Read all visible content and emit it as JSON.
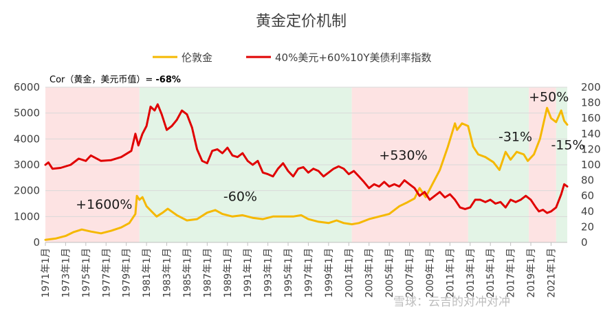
{
  "title": "黄金定价机制",
  "legend": [
    {
      "label": "伦敦金",
      "color": "#F5B800"
    },
    {
      "label": "40%美元+60%10Y美债利率指数",
      "color": "#E00000"
    }
  ],
  "cor_label": "Cor（黄金，美元币值）= ",
  "cor_value": "-68%",
  "watermark": "雪球：云吉的对冲对冲",
  "chart_data": {
    "type": "line",
    "title": "黄金定价机制",
    "x_range": [
      1971.0,
      2022.6
    ],
    "y_left_range": [
      0,
      6000
    ],
    "y_left_ticks": [
      0,
      1000,
      2000,
      3000,
      4000,
      5000,
      6000
    ],
    "y_right_range": [
      0,
      200
    ],
    "y_right_ticks": [
      0,
      20,
      40,
      60,
      80,
      100,
      120,
      140,
      160,
      180,
      200
    ],
    "x_tick_labels": [
      "1971年1月",
      "1973年1月",
      "1975年1月",
      "1977年1月",
      "1979年1月",
      "1981年1月",
      "1983年1月",
      "1985年1月",
      "1987年1月",
      "1989年1月",
      "1991年1月",
      "1993年1月",
      "1995年1月",
      "1997年1月",
      "1999年1月",
      "2001年1月",
      "2003年1月",
      "2005年1月",
      "2007年1月",
      "2009年1月",
      "2011年1月",
      "2013年1月",
      "2015年1月",
      "2017年1月",
      "2019年1月",
      "2021年1月"
    ],
    "regimes": [
      {
        "start": 1971.0,
        "end": 1980.3,
        "kind": "pink",
        "color": "#FDE3E3",
        "label": "+1600%",
        "label_x": 1974.0,
        "label_y": 1300
      },
      {
        "start": 1980.3,
        "end": 2001.3,
        "kind": "green",
        "color": "#E3F4E6",
        "label": "-60%",
        "label_x": 1988.6,
        "label_y": 1600
      },
      {
        "start": 2001.3,
        "end": 2012.8,
        "kind": "pink",
        "color": "#FDE3E3",
        "label": "+530%",
        "label_x": 2004.0,
        "label_y": 3200
      },
      {
        "start": 2012.8,
        "end": 2018.8,
        "kind": "green",
        "color": "#E3F4E6",
        "label": "-31%",
        "label_x": 2015.8,
        "label_y": 3920
      },
      {
        "start": 2018.8,
        "end": 2021.5,
        "kind": "pink",
        "color": "#FDE3E3",
        "label": "+50%",
        "label_x": 2018.8,
        "label_y": 5450
      },
      {
        "start": 2021.5,
        "end": 2022.6,
        "kind": "green",
        "color": "#E3F4E6",
        "label": "-15%",
        "label_x": 2021.0,
        "label_y": 3600
      }
    ],
    "series": [
      {
        "name": "伦敦金",
        "axis": "left",
        "color": "#F5B800",
        "points": [
          [
            1971.0,
            100
          ],
          [
            1972.0,
            150
          ],
          [
            1973.0,
            250
          ],
          [
            1973.8,
            400
          ],
          [
            1974.6,
            500
          ],
          [
            1975.5,
            420
          ],
          [
            1976.5,
            350
          ],
          [
            1977.5,
            450
          ],
          [
            1978.5,
            580
          ],
          [
            1979.3,
            750
          ],
          [
            1979.9,
            1100
          ],
          [
            1980.05,
            1800
          ],
          [
            1980.3,
            1650
          ],
          [
            1980.6,
            1750
          ],
          [
            1981.0,
            1400
          ],
          [
            1981.5,
            1200
          ],
          [
            1982.0,
            1000
          ],
          [
            1982.6,
            1150
          ],
          [
            1983.1,
            1300
          ],
          [
            1984.0,
            1050
          ],
          [
            1985.0,
            850
          ],
          [
            1986.0,
            900
          ],
          [
            1987.0,
            1150
          ],
          [
            1987.8,
            1250
          ],
          [
            1988.5,
            1100
          ],
          [
            1989.5,
            1000
          ],
          [
            1990.5,
            1050
          ],
          [
            1991.5,
            950
          ],
          [
            1992.5,
            900
          ],
          [
            1993.5,
            1000
          ],
          [
            1994.5,
            1000
          ],
          [
            1995.5,
            1000
          ],
          [
            1996.3,
            1050
          ],
          [
            1997.0,
            900
          ],
          [
            1998.0,
            800
          ],
          [
            1999.0,
            750
          ],
          [
            1999.8,
            850
          ],
          [
            2000.5,
            750
          ],
          [
            2001.3,
            700
          ],
          [
            2002.0,
            750
          ],
          [
            2003.0,
            900
          ],
          [
            2004.0,
            1000
          ],
          [
            2005.0,
            1100
          ],
          [
            2006.0,
            1400
          ],
          [
            2006.8,
            1550
          ],
          [
            2007.5,
            1700
          ],
          [
            2008.0,
            2100
          ],
          [
            2008.6,
            1750
          ],
          [
            2009.2,
            2200
          ],
          [
            2010.0,
            2800
          ],
          [
            2010.8,
            3700
          ],
          [
            2011.5,
            4600
          ],
          [
            2011.7,
            4350
          ],
          [
            2012.2,
            4600
          ],
          [
            2012.8,
            4500
          ],
          [
            2013.3,
            3700
          ],
          [
            2013.8,
            3400
          ],
          [
            2014.5,
            3300
          ],
          [
            2015.3,
            3100
          ],
          [
            2015.9,
            2800
          ],
          [
            2016.5,
            3500
          ],
          [
            2017.0,
            3200
          ],
          [
            2017.6,
            3500
          ],
          [
            2018.3,
            3400
          ],
          [
            2018.7,
            3150
          ],
          [
            2019.3,
            3400
          ],
          [
            2019.9,
            4000
          ],
          [
            2020.6,
            5200
          ],
          [
            2021.0,
            4800
          ],
          [
            2021.5,
            4650
          ],
          [
            2022.0,
            5100
          ],
          [
            2022.3,
            4700
          ],
          [
            2022.6,
            4550
          ]
        ]
      },
      {
        "name": "40%美元+60%10Y美债利率指数",
        "axis": "right",
        "color": "#E00000",
        "points": [
          [
            1971.0,
            100
          ],
          [
            1971.3,
            103
          ],
          [
            1971.7,
            95
          ],
          [
            1972.5,
            96
          ],
          [
            1973.5,
            100
          ],
          [
            1974.3,
            108
          ],
          [
            1975.0,
            105
          ],
          [
            1975.5,
            112
          ],
          [
            1976.5,
            105
          ],
          [
            1977.5,
            106
          ],
          [
            1978.5,
            110
          ],
          [
            1979.5,
            118
          ],
          [
            1979.9,
            140
          ],
          [
            1980.2,
            125
          ],
          [
            1980.6,
            140
          ],
          [
            1981.0,
            150
          ],
          [
            1981.4,
            175
          ],
          [
            1981.8,
            170
          ],
          [
            1982.1,
            178
          ],
          [
            1982.5,
            165
          ],
          [
            1983.0,
            145
          ],
          [
            1983.5,
            150
          ],
          [
            1984.0,
            158
          ],
          [
            1984.5,
            170
          ],
          [
            1985.0,
            165
          ],
          [
            1985.5,
            148
          ],
          [
            1986.0,
            120
          ],
          [
            1986.5,
            105
          ],
          [
            1987.0,
            102
          ],
          [
            1987.5,
            118
          ],
          [
            1988.0,
            120
          ],
          [
            1988.5,
            115
          ],
          [
            1989.0,
            122
          ],
          [
            1989.5,
            112
          ],
          [
            1990.0,
            110
          ],
          [
            1990.5,
            115
          ],
          [
            1991.0,
            105
          ],
          [
            1991.5,
            100
          ],
          [
            1992.0,
            105
          ],
          [
            1992.5,
            90
          ],
          [
            1993.0,
            88
          ],
          [
            1993.5,
            85
          ],
          [
            1994.0,
            95
          ],
          [
            1994.5,
            102
          ],
          [
            1995.0,
            92
          ],
          [
            1995.5,
            85
          ],
          [
            1996.0,
            95
          ],
          [
            1996.5,
            97
          ],
          [
            1997.0,
            90
          ],
          [
            1997.5,
            95
          ],
          [
            1998.0,
            92
          ],
          [
            1998.5,
            85
          ],
          [
            1999.0,
            90
          ],
          [
            1999.5,
            95
          ],
          [
            2000.0,
            98
          ],
          [
            2000.5,
            95
          ],
          [
            2001.0,
            88
          ],
          [
            2001.5,
            92
          ],
          [
            2002.0,
            85
          ],
          [
            2002.5,
            78
          ],
          [
            2003.0,
            70
          ],
          [
            2003.5,
            75
          ],
          [
            2004.0,
            72
          ],
          [
            2004.5,
            78
          ],
          [
            2005.0,
            72
          ],
          [
            2005.5,
            75
          ],
          [
            2006.0,
            72
          ],
          [
            2006.5,
            80
          ],
          [
            2007.0,
            75
          ],
          [
            2007.5,
            70
          ],
          [
            2008.0,
            60
          ],
          [
            2008.5,
            65
          ],
          [
            2009.0,
            55
          ],
          [
            2009.5,
            60
          ],
          [
            2010.0,
            65
          ],
          [
            2010.5,
            58
          ],
          [
            2011.0,
            62
          ],
          [
            2011.5,
            55
          ],
          [
            2012.0,
            45
          ],
          [
            2012.5,
            43
          ],
          [
            2013.0,
            45
          ],
          [
            2013.5,
            55
          ],
          [
            2014.0,
            55
          ],
          [
            2014.5,
            52
          ],
          [
            2015.0,
            55
          ],
          [
            2015.5,
            50
          ],
          [
            2016.0,
            52
          ],
          [
            2016.5,
            45
          ],
          [
            2017.0,
            55
          ],
          [
            2017.5,
            52
          ],
          [
            2018.0,
            55
          ],
          [
            2018.5,
            60
          ],
          [
            2019.0,
            55
          ],
          [
            2019.5,
            45
          ],
          [
            2019.8,
            40
          ],
          [
            2020.2,
            42
          ],
          [
            2020.6,
            38
          ],
          [
            2021.0,
            40
          ],
          [
            2021.5,
            45
          ],
          [
            2022.0,
            62
          ],
          [
            2022.3,
            75
          ],
          [
            2022.6,
            72
          ]
        ]
      }
    ]
  }
}
